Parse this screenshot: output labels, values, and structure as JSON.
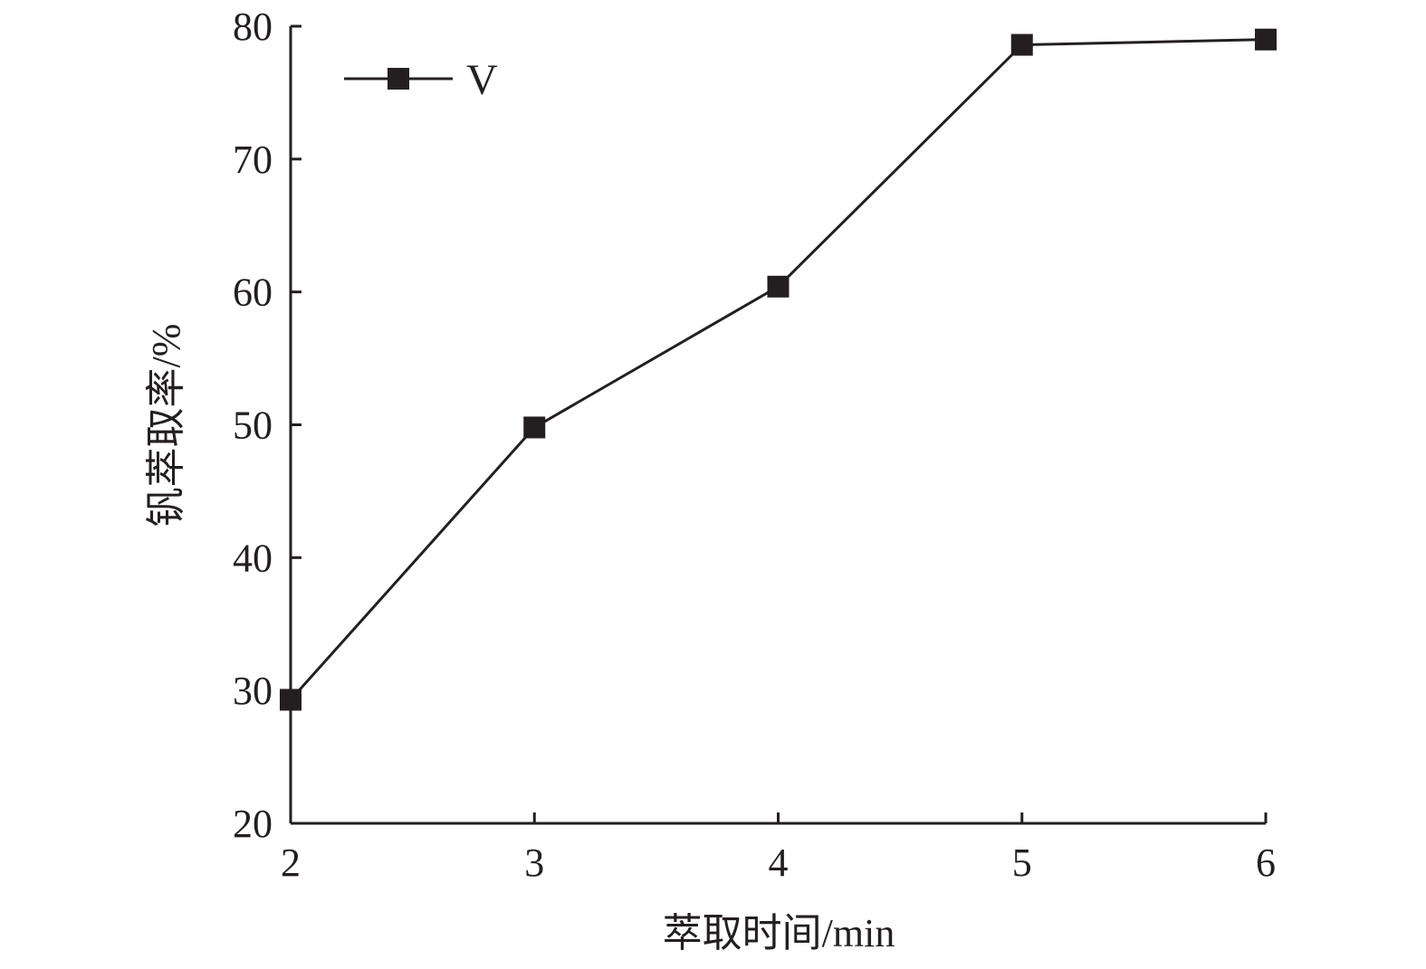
{
  "chart_data": {
    "type": "line",
    "xlabel": "萃取时间/min",
    "ylabel": "钒萃取率/%",
    "xlim": [
      2,
      6
    ],
    "ylim": [
      20,
      80
    ],
    "xticks": [
      "2",
      "3",
      "4",
      "5",
      "6"
    ],
    "yticks": [
      "20",
      "30",
      "40",
      "50",
      "60",
      "70",
      "80"
    ],
    "grid": false,
    "legend_position": "top-left",
    "series": [
      {
        "name": "V",
        "marker": "square",
        "color": "#231f20",
        "x": [
          2,
          3,
          4,
          5,
          6
        ],
        "y": [
          29.3,
          49.8,
          60.4,
          78.6,
          79.0
        ]
      }
    ]
  }
}
